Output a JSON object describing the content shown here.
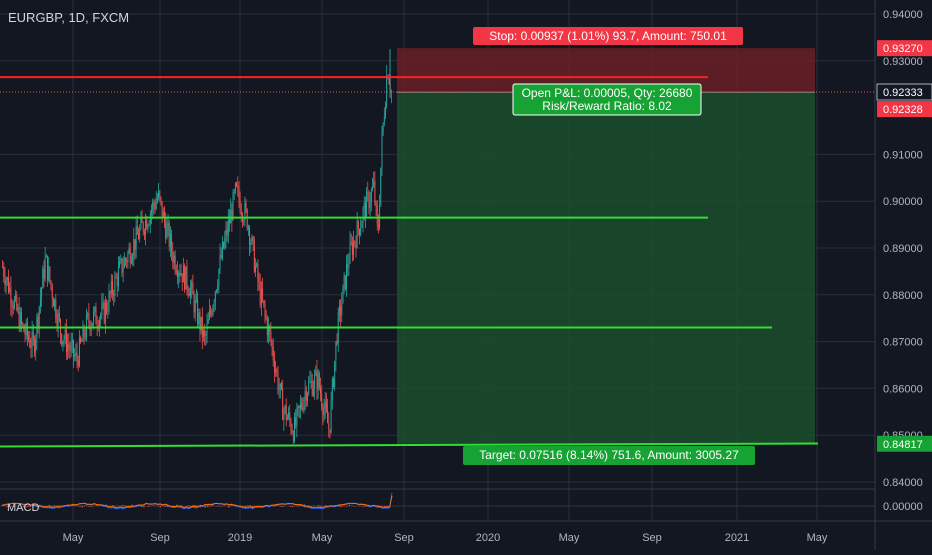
{
  "symbol_title": "EURGBP, 1D, FXCM",
  "colors": {
    "background": "#131722",
    "grid": "#2a2e39",
    "axis_text": "#b2b5be",
    "candle_up": "#26a69a",
    "candle_down": "#ef5350",
    "support_line": "#33dd33",
    "stop_line": "#ff2020",
    "profit_zone": "#1b4d2c",
    "loss_zone": "#6b1f26",
    "label_red": "#f23645",
    "label_green": "#16a333"
  },
  "price_axis": {
    "ticks": [
      "0.94000",
      "0.93000",
      "0.91000",
      "0.90000",
      "0.89000",
      "0.88000",
      "0.87000",
      "0.86000",
      "0.85000",
      "0.84000"
    ],
    "tick_values": [
      0.94,
      0.93,
      0.91,
      0.9,
      0.89,
      0.88,
      0.87,
      0.86,
      0.85,
      0.84
    ],
    "stop_price": "0.93270",
    "current_price": "0.92333",
    "entry_price": "0.92328",
    "target_price": "0.84817"
  },
  "time_axis": {
    "labels": [
      "May",
      "Sep",
      "2019",
      "May",
      "Sep",
      "2020",
      "May",
      "Sep",
      "2021",
      "May"
    ]
  },
  "position": {
    "stop_label": "Stop: 0.00937 (1.01%) 93.7, Amount: 750.01",
    "open_pnl_label": "Open P&L: 0.00005, Qty: 26680",
    "risk_reward_label": "Risk/Reward Ratio: 8.02",
    "target_label": "Target: 0.07516 (8.14%) 751.6, Amount: 3005.27"
  },
  "horizontal_lines": [
    {
      "name": "stop-level-line",
      "price": 0.9265,
      "color": "#ff2020"
    },
    {
      "name": "resistance-line",
      "price": 0.8965,
      "color": "#33dd33"
    },
    {
      "name": "mid-support-line",
      "price": 0.873,
      "color": "#33dd33"
    },
    {
      "name": "bottom-support-line",
      "price": 0.8478,
      "color": "#33dd33"
    }
  ],
  "macd": {
    "label": "MACD",
    "zero_tick": "0.00000"
  },
  "chart_data": {
    "type": "candlestick",
    "title": "EURGBP, 1D, FXCM",
    "ylim": [
      0.8375,
      0.9415
    ],
    "x_labels": [
      "May",
      "Sep",
      "2019",
      "May",
      "Sep",
      "2020",
      "May",
      "Sep",
      "2021",
      "May"
    ],
    "price_path_anchors": [
      {
        "t": 0.0,
        "close": 0.886
      },
      {
        "t": 0.05,
        "close": 0.873
      },
      {
        "t": 0.08,
        "close": 0.869
      },
      {
        "t": 0.11,
        "close": 0.8875
      },
      {
        "t": 0.15,
        "close": 0.872
      },
      {
        "t": 0.19,
        "close": 0.866
      },
      {
        "t": 0.22,
        "close": 0.8745
      },
      {
        "t": 0.26,
        "close": 0.876
      },
      {
        "t": 0.3,
        "close": 0.885
      },
      {
        "t": 0.35,
        "close": 0.893
      },
      {
        "t": 0.4,
        "close": 0.901
      },
      {
        "t": 0.44,
        "close": 0.888
      },
      {
        "t": 0.48,
        "close": 0.882
      },
      {
        "t": 0.52,
        "close": 0.87
      },
      {
        "t": 0.56,
        "close": 0.887
      },
      {
        "t": 0.6,
        "close": 0.902
      },
      {
        "t": 0.63,
        "close": 0.896
      },
      {
        "t": 0.66,
        "close": 0.881
      },
      {
        "t": 0.69,
        "close": 0.87
      },
      {
        "t": 0.72,
        "close": 0.856
      },
      {
        "t": 0.75,
        "close": 0.851
      },
      {
        "t": 0.78,
        "close": 0.86
      },
      {
        "t": 0.81,
        "close": 0.862
      },
      {
        "t": 0.84,
        "close": 0.851
      },
      {
        "t": 0.86,
        "close": 0.872
      },
      {
        "t": 0.89,
        "close": 0.888
      },
      {
        "t": 0.93,
        "close": 0.898
      },
      {
        "t": 0.955,
        "close": 0.903
      },
      {
        "t": 0.965,
        "close": 0.892
      },
      {
        "t": 0.975,
        "close": 0.912
      },
      {
        "t": 0.99,
        "close": 0.929
      },
      {
        "t": 1.0,
        "close": 0.9233
      }
    ],
    "candle_count": 330,
    "stop": 0.9327,
    "entry": 0.92328,
    "target": 0.84817
  }
}
